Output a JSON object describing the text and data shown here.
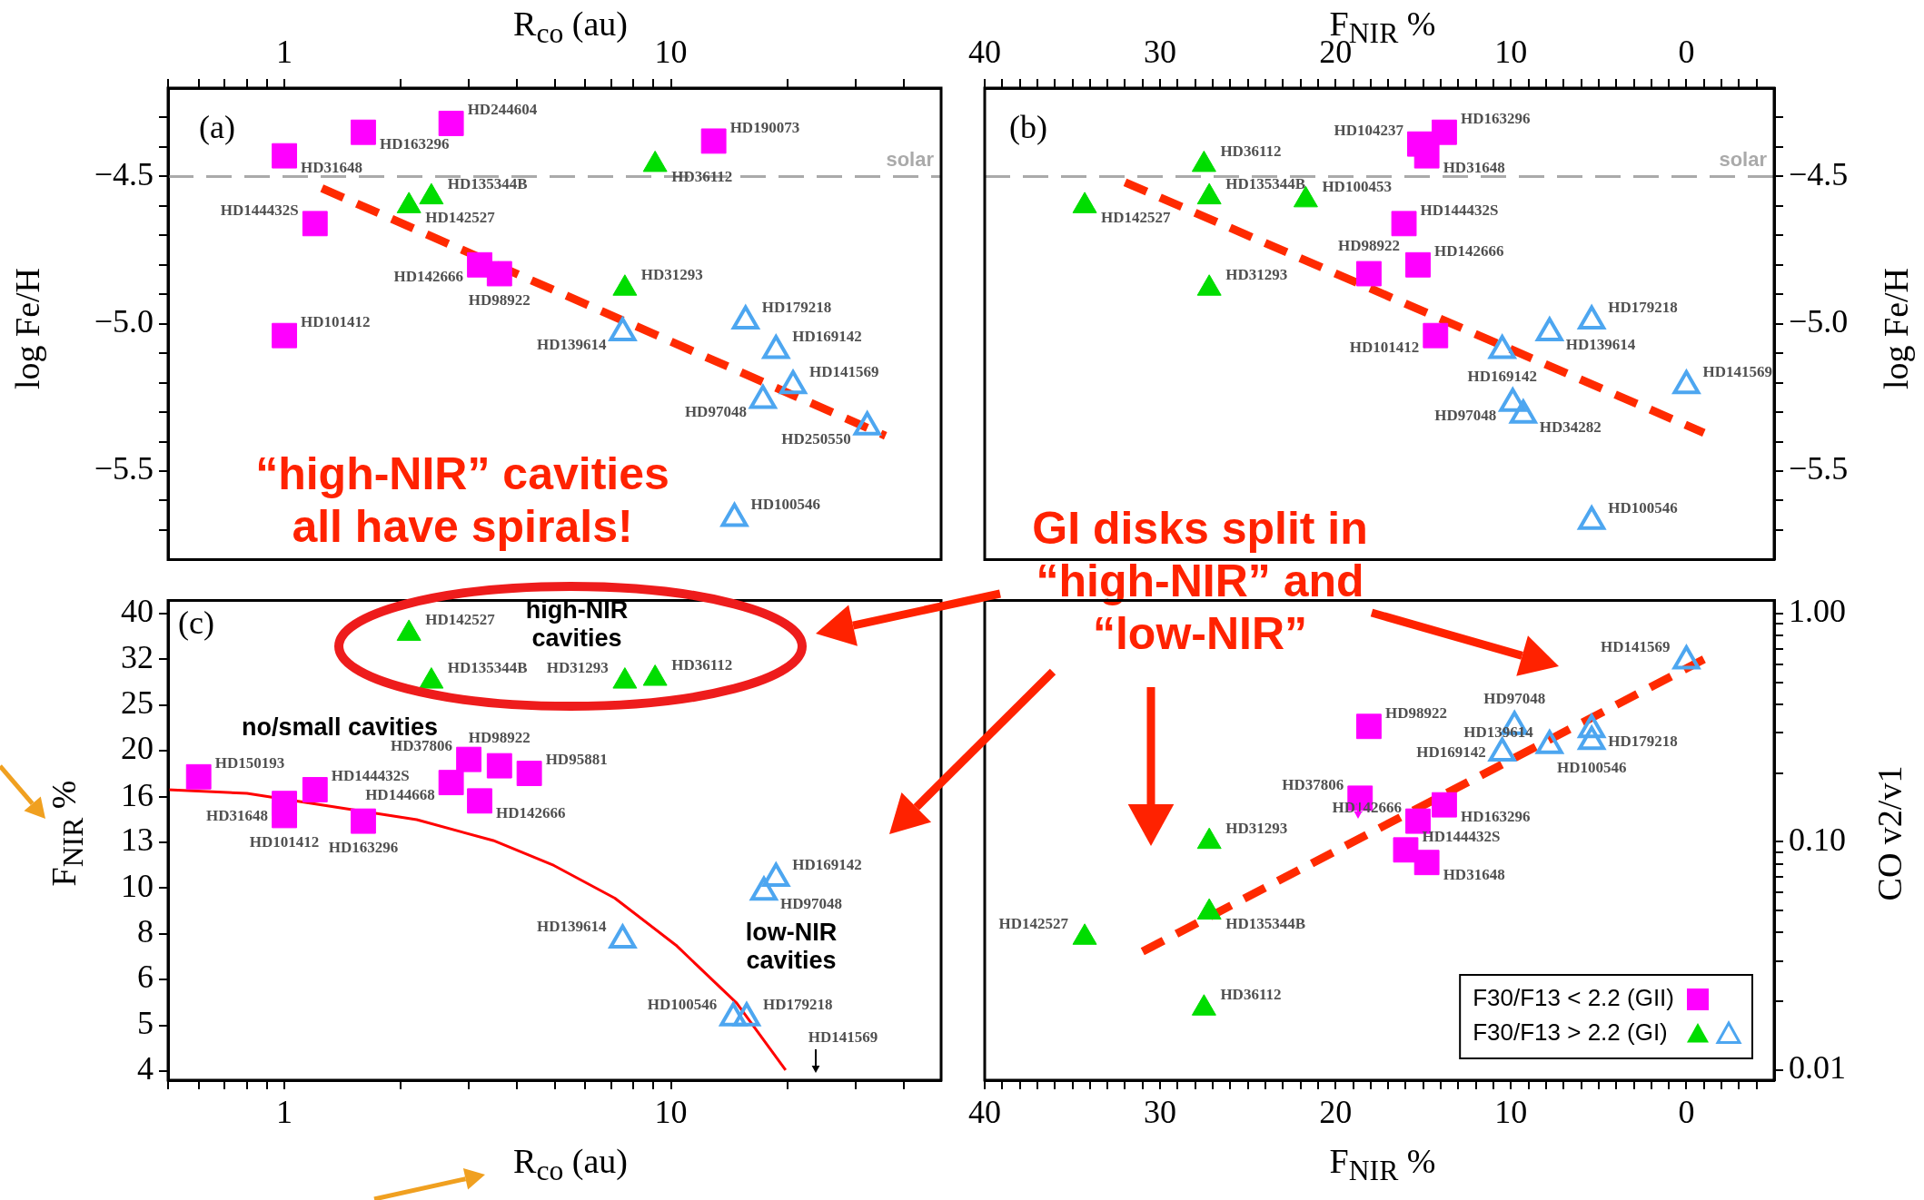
{
  "chart_data": [
    {
      "type": "scatter",
      "xlabel": "R$_{co}$ (au)",
      "ylabel": "log Fe/H",
      "log": "x",
      "grid": false,
      "xlim": [
        0.5,
        50
      ],
      "ylim": [
        -5.8,
        -4.2
      ],
      "xticks": [
        {
          "value": 0.5,
          "label": null
        },
        {
          "value": 0.6,
          "label": null
        },
        {
          "value": 0.7,
          "label": null
        },
        {
          "value": 0.8,
          "label": null
        },
        {
          "value": 0.9,
          "label": null
        },
        1,
        {
          "value": 2,
          "label": null
        },
        {
          "value": 3,
          "label": null
        },
        {
          "value": 4,
          "label": null
        },
        {
          "value": 5,
          "label": null
        },
        {
          "value": 6,
          "label": null
        },
        {
          "value": 7,
          "label": null
        },
        {
          "value": 8,
          "label": null
        },
        {
          "value": 9,
          "label": null
        },
        10,
        {
          "value": 20,
          "label": null
        },
        {
          "value": 30,
          "label": null
        },
        {
          "value": 40,
          "label": null
        }
      ],
      "yticks": [
        {
          "value": -4.3,
          "label": null
        },
        {
          "value": -4.4,
          "label": null
        },
        {
          "value": -4.5,
          "label": "−4.5"
        },
        {
          "value": -4.6,
          "label": null
        },
        {
          "value": -4.7,
          "label": null
        },
        {
          "value": -4.8,
          "label": null
        },
        {
          "value": -4.9,
          "label": null
        },
        {
          "value": -5.0,
          "label": "−5.0"
        },
        {
          "value": -5.1,
          "label": null
        },
        {
          "value": -5.2,
          "label": null
        },
        {
          "value": -5.3,
          "label": null
        },
        {
          "value": -5.4,
          "label": null
        },
        {
          "value": -5.5,
          "label": "−5.5"
        },
        {
          "value": -5.6,
          "label": null
        },
        {
          "value": -5.7,
          "label": null
        }
      ],
      "series": [
        {
          "marker": "square",
          "color": "#ff00ff",
          "x": [
            1.0,
            1.6,
            2.7,
            12.9,
            1.2,
            3.2,
            3.6,
            1.0
          ],
          "values": [
            -4.43,
            -4.35,
            -4.32,
            -4.38,
            -4.66,
            -4.8,
            -4.83,
            -5.04
          ]
        },
        {
          "marker": "triangle",
          "color": "#00dd00",
          "x": [
            9.1,
            2.4,
            2.1,
            7.6
          ],
          "values": [
            -4.46,
            -4.57,
            -4.6,
            -4.88
          ]
        },
        {
          "marker": "triangle",
          "color": "#4da6f0",
          "x": [
            7.5,
            15.6,
            18.7,
            20.7,
            17.3,
            32.2,
            14.6
          ],
          "values": [
            -5.03,
            -4.99,
            -5.09,
            -5.21,
            -5.26,
            -5.35,
            -5.66
          ]
        },
        {
          "type": "line",
          "marker": "none",
          "line_style": "dashed",
          "color": "#ff2a00",
          "x": [
            1.25,
            35.9
          ],
          "values": [
            -4.54,
            -5.38
          ]
        }
      ],
      "ref_lines": [
        {
          "axis": "y",
          "value": -4.5,
          "label": "solar",
          "color": "#aaaaaa",
          "line_style": "dashed"
        }
      ],
      "annotations": [
        "(a)",
        "“high-NIR” cavities all have spirals!",
        {
          "text": "HD31648",
          "x": 1.0,
          "y": -4.43
        },
        {
          "text": "HD163296",
          "x": 1.6,
          "y": -4.35
        },
        {
          "text": "HD244604",
          "x": 2.7,
          "y": -4.32
        },
        {
          "text": "HD190073",
          "x": 12.9,
          "y": -4.38
        },
        {
          "text": "HD144432S",
          "x": 1.2,
          "y": -4.66
        },
        {
          "text": "HD142666",
          "x": 3.2,
          "y": -4.8
        },
        {
          "text": "HD98922",
          "x": 3.6,
          "y": -4.83
        },
        {
          "text": "HD101412",
          "x": 1.0,
          "y": -5.04
        },
        {
          "text": "HD36112",
          "x": 9.1,
          "y": -4.46
        },
        {
          "text": "HD135344B",
          "x": 2.4,
          "y": -4.57
        },
        {
          "text": "HD142527",
          "x": 2.1,
          "y": -4.6
        },
        {
          "text": "HD31293",
          "x": 7.6,
          "y": -4.88
        },
        {
          "text": "HD139614",
          "x": 7.5,
          "y": -5.03
        },
        {
          "text": "HD179218",
          "x": 15.6,
          "y": -4.99
        },
        {
          "text": "HD169142",
          "x": 18.7,
          "y": -5.09
        },
        {
          "text": "HD141569",
          "x": 20.7,
          "y": -5.21
        },
        {
          "text": "HD97048",
          "x": 17.3,
          "y": -5.26
        },
        {
          "text": "HD250550",
          "x": 32.2,
          "y": -5.35
        },
        {
          "text": "HD100546",
          "x": 14.6,
          "y": -5.66
        }
      ]
    },
    {
      "type": "scatter",
      "xlabel": "F$_{NIR}$ %",
      "ylabel": "log Fe/H",
      "grid": false,
      "xlim": [
        40,
        -5
      ],
      "ylim": [
        -5.8,
        -4.2
      ],
      "xticks": [
        40,
        {
          "value": 39,
          "label": null
        },
        {
          "value": 38,
          "label": null
        },
        {
          "value": 37,
          "label": null
        },
        {
          "value": 36,
          "label": null
        },
        {
          "value": 35,
          "label": null
        },
        {
          "value": 34,
          "label": null
        },
        {
          "value": 33,
          "label": null
        },
        {
          "value": 32,
          "label": null
        },
        {
          "value": 31,
          "label": null
        },
        30,
        {
          "value": 29,
          "label": null
        },
        {
          "value": 28,
          "label": null
        },
        {
          "value": 27,
          "label": null
        },
        {
          "value": 26,
          "label": null
        },
        {
          "value": 25,
          "label": null
        },
        {
          "value": 24,
          "label": null
        },
        {
          "value": 23,
          "label": null
        },
        {
          "value": 22,
          "label": null
        },
        {
          "value": 21,
          "label": null
        },
        20,
        {
          "value": 19,
          "label": null
        },
        {
          "value": 18,
          "label": null
        },
        {
          "value": 17,
          "label": null
        },
        {
          "value": 16,
          "label": null
        },
        {
          "value": 15,
          "label": null
        },
        {
          "value": 14,
          "label": null
        },
        {
          "value": 13,
          "label": null
        },
        {
          "value": 12,
          "label": null
        },
        {
          "value": 11,
          "label": null
        },
        10,
        {
          "value": 9,
          "label": null
        },
        {
          "value": 8,
          "label": null
        },
        {
          "value": 7,
          "label": null
        },
        {
          "value": 6,
          "label": null
        },
        {
          "value": 5,
          "label": null
        },
        {
          "value": 4,
          "label": null
        },
        {
          "value": 3,
          "label": null
        },
        {
          "value": 2,
          "label": null
        },
        {
          "value": 1,
          "label": null
        },
        0,
        {
          "value": -1,
          "label": null
        },
        {
          "value": -2,
          "label": null
        },
        {
          "value": -3,
          "label": null
        },
        {
          "value": -4,
          "label": null
        }
      ],
      "yticks": [
        {
          "value": -4.3,
          "label": null
        },
        {
          "value": -4.4,
          "label": null
        },
        {
          "value": -4.5,
          "label": "−4.5"
        },
        {
          "value": -4.6,
          "label": null
        },
        {
          "value": -4.7,
          "label": null
        },
        {
          "value": -4.8,
          "label": null
        },
        {
          "value": -4.9,
          "label": null
        },
        {
          "value": -5.0,
          "label": "−5.0"
        },
        {
          "value": -5.1,
          "label": null
        },
        {
          "value": -5.2,
          "label": null
        },
        {
          "value": -5.3,
          "label": null
        },
        {
          "value": -5.4,
          "label": null
        },
        {
          "value": -5.5,
          "label": "−5.5"
        },
        {
          "value": -5.6,
          "label": null
        },
        {
          "value": -5.7,
          "label": null
        }
      ],
      "series": [
        {
          "marker": "square",
          "color": "#ff00ff",
          "x": [
            13.8,
            15.2,
            14.8,
            16.1,
            15.3,
            18.1,
            14.3
          ],
          "values": [
            -4.35,
            -4.39,
            -4.43,
            -4.66,
            -4.8,
            -4.83,
            -5.04
          ]
        },
        {
          "marker": "triangle",
          "color": "#00dd00",
          "x": [
            27.5,
            27.2,
            21.7,
            34.3,
            27.2
          ],
          "values": [
            -4.46,
            -4.57,
            -4.58,
            -4.6,
            -4.88
          ]
        },
        {
          "marker": "triangle",
          "color": "#4da6f0",
          "x": [
            5.4,
            7.8,
            10.5,
            0,
            9.9,
            9.3,
            5.4
          ],
          "values": [
            -4.99,
            -5.03,
            -5.09,
            -5.21,
            -5.27,
            -5.31,
            -5.67
          ]
        },
        {
          "type": "line",
          "marker": "none",
          "line_style": "dashed",
          "color": "#ff2a00",
          "x": [
            32.0,
            -1.0
          ],
          "values": [
            -4.52,
            -5.37
          ]
        }
      ],
      "ref_lines": [
        {
          "axis": "y",
          "value": -4.5,
          "label": "solar",
          "color": "#aaaaaa",
          "line_style": "dashed"
        }
      ],
      "annotations": [
        "(b)",
        "GI disks split in “high-NIR” and “low-NIR”",
        {
          "text": "HD163296",
          "x": 13.8,
          "y": -4.35
        },
        {
          "text": "HD104237",
          "x": 15.2,
          "y": -4.39
        },
        {
          "text": "HD31648",
          "x": 14.8,
          "y": -4.43
        },
        {
          "text": "HD144432S",
          "x": 16.1,
          "y": -4.66
        },
        {
          "text": "HD142666",
          "x": 15.3,
          "y": -4.8
        },
        {
          "text": "HD98922",
          "x": 18.1,
          "y": -4.83
        },
        {
          "text": "HD101412",
          "x": 14.3,
          "y": -5.04
        },
        {
          "text": "HD36112",
          "x": 27.5,
          "y": -4.46
        },
        {
          "text": "HD135344B",
          "x": 27.2,
          "y": -4.57
        },
        {
          "text": "HD100453",
          "x": 21.7,
          "y": -4.58
        },
        {
          "text": "HD142527",
          "x": 34.3,
          "y": -4.6
        },
        {
          "text": "HD31293",
          "x": 27.2,
          "y": -4.88
        },
        {
          "text": "HD179218",
          "x": 5.4,
          "y": -4.99
        },
        {
          "text": "HD139614",
          "x": 7.8,
          "y": -5.03
        },
        {
          "text": "HD169142",
          "x": 10.5,
          "y": -5.09
        },
        {
          "text": "HD141569",
          "x": 0,
          "y": -5.21
        },
        {
          "text": "HD97048",
          "x": 9.9,
          "y": -5.27
        },
        {
          "text": "HD34282",
          "x": 9.3,
          "y": -5.31
        },
        {
          "text": "HD100546",
          "x": 5.4,
          "y": -5.67
        }
      ]
    },
    {
      "type": "scatter",
      "xlabel": "R$_{co}$ (au)",
      "ylabel": "F$_{NIR}$ %",
      "log": "xy",
      "grid": false,
      "xlim": [
        0.5,
        50
      ],
      "ylim": [
        3.8,
        42.5
      ],
      "xticks": [
        {
          "value": 0.5,
          "label": null
        },
        {
          "value": 0.6,
          "label": null
        },
        {
          "value": 0.7,
          "label": null
        },
        {
          "value": 0.8,
          "label": null
        },
        {
          "value": 0.9,
          "label": null
        },
        1,
        {
          "value": 2,
          "label": null
        },
        {
          "value": 3,
          "label": null
        },
        {
          "value": 4,
          "label": null
        },
        {
          "value": 5,
          "label": null
        },
        {
          "value": 6,
          "label": null
        },
        {
          "value": 7,
          "label": null
        },
        {
          "value": 8,
          "label": null
        },
        {
          "value": 9,
          "label": null
        },
        10,
        {
          "value": 20,
          "label": null
        },
        {
          "value": 30,
          "label": null
        },
        {
          "value": 40,
          "label": null
        }
      ],
      "yticks": [
        {
          "value": 3.98,
          "label": "4"
        },
        5,
        {
          "value": 6.31,
          "label": "6"
        },
        {
          "value": 7.94,
          "label": "8"
        },
        10,
        {
          "value": 12.6,
          "label": "13"
        },
        {
          "value": 15.8,
          "label": "16"
        },
        20,
        {
          "value": 25.1,
          "label": "25"
        },
        {
          "value": 31.6,
          "label": "32"
        },
        {
          "value": 39.8,
          "label": "40"
        }
      ],
      "series": [
        {
          "marker": "square",
          "color": "#ff00ff",
          "x": [
            0.6,
            1.0,
            1.0,
            1.2,
            1.6,
            2.7,
            3.0,
            3.6,
            4.3,
            3.2
          ],
          "values": [
            17.5,
            15.3,
            14.4,
            16.4,
            14.0,
            17.0,
            19.1,
            18.5,
            17.8,
            15.5
          ]
        },
        {
          "marker": "triangle",
          "color": "#00dd00",
          "x": [
            2.1,
            2.4,
            7.6,
            9.1
          ],
          "values": [
            36,
            28.3,
            28.3,
            28.7
          ]
        },
        {
          "marker": "triangle",
          "color": "#4da6f0",
          "x": [
            18.7,
            17.4,
            7.5,
            15.7,
            14.5
          ],
          "values": [
            10.5,
            9.8,
            7.7,
            5.2,
            5.2
          ]
        },
        {
          "type": "line",
          "marker": "none",
          "line_style": "solid",
          "color": "#ff0000",
          "x": [
            0.5,
            0.8,
            2.2,
            3.47,
            4.98,
            7.16,
            10.3,
            14.8,
            19.8
          ],
          "values": [
            16.4,
            16.1,
            14.1,
            12.7,
            11.2,
            9.5,
            7.5,
            5.6,
            4.0
          ]
        }
      ],
      "annotations": [
        "(c)",
        "high-NIR cavities",
        "no/small cavities",
        "low-NIR cavities",
        "HD141569",
        {
          "text": "HD150193",
          "x": 0.6,
          "y": 17.5
        },
        {
          "text": "HD31648",
          "x": 1.0,
          "y": 15.3
        },
        {
          "text": "HD101412",
          "x": 1.0,
          "y": 14.4
        },
        {
          "text": "HD144432S",
          "x": 1.2,
          "y": 16.4
        },
        {
          "text": "HD163296",
          "x": 1.6,
          "y": 14.0
        },
        {
          "text": "HD144668",
          "x": 2.7,
          "y": 17.0
        },
        {
          "text": "HD37806",
          "x": 3.0,
          "y": 19.1
        },
        {
          "text": "HD98922",
          "x": 3.6,
          "y": 18.5
        },
        {
          "text": "HD95881",
          "x": 4.3,
          "y": 17.8
        },
        {
          "text": "HD142666",
          "x": 3.2,
          "y": 15.5
        },
        {
          "text": "HD142527",
          "x": 2.1,
          "y": 36
        },
        {
          "text": "HD135344B",
          "x": 2.4,
          "y": 28.3
        },
        {
          "text": "HD31293",
          "x": 7.6,
          "y": 28.3
        },
        {
          "text": "HD36112",
          "x": 9.1,
          "y": 28.7
        },
        {
          "text": "HD169142",
          "x": 18.7,
          "y": 10.5
        },
        {
          "text": "HD97048",
          "x": 17.4,
          "y": 9.8
        },
        {
          "text": "HD139614",
          "x": 7.5,
          "y": 7.7
        },
        {
          "text": "HD179218",
          "x": 15.7,
          "y": 5.2
        },
        {
          "text": "HD100546",
          "x": 14.5,
          "y": 5.2
        }
      ]
    },
    {
      "type": "scatter",
      "xlabel": "F$_{NIR}$ %",
      "ylabel": "CO v2/v1",
      "log": "y",
      "grid": false,
      "legend": "bottom right",
      "xlim": [
        40,
        -5
      ],
      "ylim": [
        0.009,
        1.14
      ],
      "xticks": [
        40,
        {
          "value": 39,
          "label": null
        },
        {
          "value": 38,
          "label": null
        },
        {
          "value": 37,
          "label": null
        },
        {
          "value": 36,
          "label": null
        },
        {
          "value": 35,
          "label": null
        },
        {
          "value": 34,
          "label": null
        },
        {
          "value": 33,
          "label": null
        },
        {
          "value": 32,
          "label": null
        },
        {
          "value": 31,
          "label": null
        },
        30,
        {
          "value": 29,
          "label": null
        },
        {
          "value": 28,
          "label": null
        },
        {
          "value": 27,
          "label": null
        },
        {
          "value": 26,
          "label": null
        },
        {
          "value": 25,
          "label": null
        },
        {
          "value": 24,
          "label": null
        },
        {
          "value": 23,
          "label": null
        },
        {
          "value": 22,
          "label": null
        },
        {
          "value": 21,
          "label": null
        },
        20,
        {
          "value": 19,
          "label": null
        },
        {
          "value": 18,
          "label": null
        },
        {
          "value": 17,
          "label": null
        },
        {
          "value": 16,
          "label": null
        },
        {
          "value": 15,
          "label": null
        },
        {
          "value": 14,
          "label": null
        },
        {
          "value": 13,
          "label": null
        },
        {
          "value": 12,
          "label": null
        },
        {
          "value": 11,
          "label": null
        },
        10,
        {
          "value": 9,
          "label": null
        },
        {
          "value": 8,
          "label": null
        },
        {
          "value": 7,
          "label": null
        },
        {
          "value": 6,
          "label": null
        },
        {
          "value": 5,
          "label": null
        },
        {
          "value": 4,
          "label": null
        },
        {
          "value": 3,
          "label": null
        },
        {
          "value": 2,
          "label": null
        },
        {
          "value": 1,
          "label": null
        },
        0,
        {
          "value": -1,
          "label": null
        },
        {
          "value": -2,
          "label": null
        },
        {
          "value": -3,
          "label": null
        },
        {
          "value": -4,
          "label": null
        }
      ],
      "yticks": [
        {
          "value": 0.01,
          "label": "0.01"
        },
        {
          "value": 0.02,
          "label": null
        },
        {
          "value": 0.03,
          "label": null
        },
        {
          "value": 0.04,
          "label": null
        },
        {
          "value": 0.05,
          "label": null
        },
        {
          "value": 0.06,
          "label": null
        },
        {
          "value": 0.07,
          "label": null
        },
        {
          "value": 0.08,
          "label": null
        },
        {
          "value": 0.09,
          "label": null
        },
        {
          "value": 0.1,
          "label": "0.10"
        },
        {
          "value": 0.2,
          "label": null
        },
        {
          "value": 0.3,
          "label": null
        },
        {
          "value": 0.4,
          "label": null
        },
        {
          "value": 0.5,
          "label": null
        },
        {
          "value": 0.6,
          "label": null
        },
        {
          "value": 0.7,
          "label": null
        },
        {
          "value": 0.8,
          "label": null
        },
        {
          "value": 0.9,
          "label": null
        },
        {
          "value": 1,
          "label": "1.00"
        }
      ],
      "series": [
        {
          "name": "F30/F13 < 2.2 (GII)",
          "marker": "square",
          "color": "#ff00ff",
          "x": [
            18.1,
            18.6,
            13.8,
            15.3,
            16.0,
            14.8
          ],
          "values": [
            0.32,
            0.155,
            0.145,
            0.123,
            0.092,
            0.081
          ]
        },
        {
          "name": "F30/F13 > 2.2 (GI)",
          "marker": "triangle",
          "color": "#00dd00",
          "x": [
            27.2,
            27.2,
            34.3,
            27.5
          ],
          "values": [
            0.1,
            0.049,
            0.038,
            0.0186
          ]
        },
        {
          "marker": "triangle",
          "color": "#4da6f0",
          "x": [
            0,
            9.8,
            5.4,
            5.4,
            7.8,
            10.5
          ],
          "values": [
            0.62,
            0.32,
            0.31,
            0.275,
            0.264,
            0.245
          ]
        },
        {
          "type": "line",
          "marker": "none",
          "line_style": "dashed",
          "color": "#ff2a00",
          "x": [
            31.0,
            -1.0
          ],
          "values": [
            0.033,
            0.63
          ]
        }
      ],
      "annotations": [
        {
          "text": "HD98922",
          "x": 18.1,
          "y": 0.32
        },
        {
          "text": "HD37806",
          "x": 18.6,
          "y": 0.155
        },
        {
          "text": "HD163296",
          "x": 13.8,
          "y": 0.145
        },
        {
          "text": "HD142666",
          "x": 15.3,
          "y": 0.123
        },
        {
          "text": "HD144432S",
          "x": 16.0,
          "y": 0.092
        },
        {
          "text": "HD31648",
          "x": 14.8,
          "y": 0.081
        },
        {
          "text": "HD31293",
          "x": 27.2,
          "y": 0.1
        },
        {
          "text": "HD135344B",
          "x": 27.2,
          "y": 0.049
        },
        {
          "text": "HD142527",
          "x": 34.3,
          "y": 0.038
        },
        {
          "text": "HD36112",
          "x": 27.5,
          "y": 0.0186
        },
        {
          "text": "HD141569",
          "x": 0,
          "y": 0.62
        },
        {
          "text": "HD97048",
          "x": 9.8,
          "y": 0.32
        },
        {
          "text": "HD179218",
          "x": 5.4,
          "y": 0.31
        },
        {
          "text": "HD100546",
          "x": 5.4,
          "y": 0.275
        },
        {
          "text": "HD139614",
          "x": 7.8,
          "y": 0.264
        },
        {
          "text": "HD169142",
          "x": 10.5,
          "y": 0.245
        }
      ]
    }
  ]
}
